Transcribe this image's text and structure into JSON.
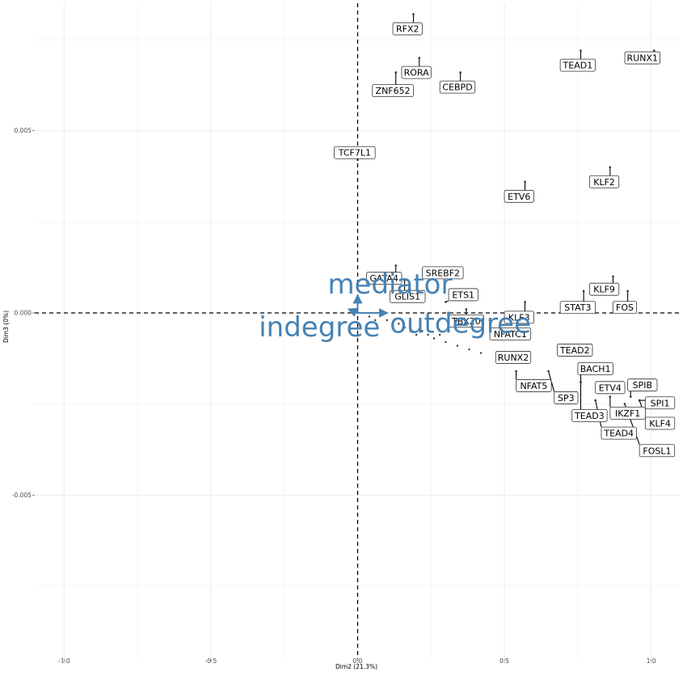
{
  "chart_data": {
    "type": "scatter",
    "title": "",
    "xlabel": "Dim2 (21.3%)",
    "ylabel": "Dim3 (0%)",
    "xlim": [
      -1.1,
      1.1
    ],
    "ylim": [
      -0.0095,
      0.0085
    ],
    "x_ticks": [
      -1.0,
      -0.5,
      0.0,
      0.5,
      1.0
    ],
    "x_tick_labels": [
      "-1.0",
      "-0.5",
      "0.0",
      "0.5",
      "1.0"
    ],
    "y_ticks": [
      -0.005,
      0.0,
      0.005
    ],
    "y_tick_labels": [
      "-0.005",
      "0.000",
      "0.005"
    ],
    "grid": true,
    "reference_lines": {
      "x": 0,
      "y": 0,
      "style": "dashed"
    },
    "points": [
      {
        "label": "RFX2",
        "x": 0.19,
        "y": 0.0082,
        "lx": 0.17,
        "ly": 0.0078
      },
      {
        "label": "RUNX1",
        "x": 1.01,
        "y": 0.0072,
        "lx": 0.97,
        "ly": 0.007
      },
      {
        "label": "TEAD1",
        "x": 0.76,
        "y": 0.0072,
        "lx": 0.75,
        "ly": 0.0068
      },
      {
        "label": "RORA",
        "x": 0.21,
        "y": 0.007,
        "lx": 0.2,
        "ly": 0.0066
      },
      {
        "label": "ZNF652",
        "x": 0.13,
        "y": 0.0066,
        "lx": 0.12,
        "ly": 0.0061
      },
      {
        "label": "CEBPD",
        "x": 0.35,
        "y": 0.0066,
        "lx": 0.34,
        "ly": 0.0062
      },
      {
        "label": "TCF7L1",
        "x": 0.0,
        "y": 0.0042,
        "lx": -0.01,
        "ly": 0.0044
      },
      {
        "label": "KLF2",
        "x": 0.86,
        "y": 0.004,
        "lx": 0.84,
        "ly": 0.0036
      },
      {
        "label": "ETV6",
        "x": 0.57,
        "y": 0.0036,
        "lx": 0.55,
        "ly": 0.0032
      },
      {
        "label": "SREBF2",
        "x": 0.31,
        "y": 0.0012,
        "lx": 0.29,
        "ly": 0.0011
      },
      {
        "label": "GATA4",
        "x": 0.13,
        "y": 0.0013,
        "lx": 0.09,
        "ly": 0.00095
      },
      {
        "label": "GLIS1",
        "x": 0.16,
        "y": 0.0009,
        "lx": 0.17,
        "ly": 0.00045
      },
      {
        "label": "ETS1",
        "x": 0.3,
        "y": 0.0003,
        "lx": 0.36,
        "ly": 0.0005
      },
      {
        "label": "KLF9",
        "x": 0.87,
        "y": 0.001,
        "lx": 0.84,
        "ly": 0.00065
      },
      {
        "label": "STAT3",
        "x": 0.77,
        "y": 0.0006,
        "lx": 0.75,
        "ly": 0.00015
      },
      {
        "label": "FOS",
        "x": 0.92,
        "y": 0.0006,
        "lx": 0.91,
        "ly": 0.00015
      },
      {
        "label": "KLF3",
        "x": 0.57,
        "y": 0.0003,
        "lx": 0.55,
        "ly": -0.00012
      },
      {
        "label": "TBX20",
        "x": 0.37,
        "y": 0.0001,
        "lx": 0.37,
        "ly": -0.00022
      },
      {
        "label": "NFATC1",
        "x": 0.45,
        "y": -0.0002,
        "lx": 0.52,
        "ly": -0.00058
      },
      {
        "label": "TEAD2",
        "x": 0.7,
        "y": -0.001,
        "lx": 0.74,
        "ly": -0.00102
      },
      {
        "label": "RUNX2",
        "x": 0.48,
        "y": -0.0012,
        "lx": 0.53,
        "ly": -0.00122
      },
      {
        "label": "BACH1",
        "x": 0.76,
        "y": -0.0019,
        "lx": 0.81,
        "ly": -0.00153
      },
      {
        "label": "NFAT5",
        "x": 0.54,
        "y": -0.0016,
        "lx": 0.6,
        "ly": -0.002
      },
      {
        "label": "SPIB",
        "x": 0.93,
        "y": -0.0023,
        "lx": 0.97,
        "ly": -0.00198
      },
      {
        "label": "ETV4",
        "x": 0.85,
        "y": -0.0022,
        "lx": 0.86,
        "ly": -0.00205
      },
      {
        "label": "SP3",
        "x": 0.65,
        "y": -0.0016,
        "lx": 0.71,
        "ly": -0.00233
      },
      {
        "label": "SPI1",
        "x": 0.96,
        "y": -0.0024,
        "lx": 1.03,
        "ly": -0.00247
      },
      {
        "label": "IKZF1",
        "x": 0.86,
        "y": -0.0023,
        "lx": 0.92,
        "ly": -0.00275
      },
      {
        "label": "TEAD3",
        "x": 0.76,
        "y": -0.0019,
        "lx": 0.79,
        "ly": -0.00282
      },
      {
        "label": "KLF4",
        "x": 0.96,
        "y": -0.0024,
        "lx": 1.03,
        "ly": -0.00303
      },
      {
        "label": "TEAD4",
        "x": 0.81,
        "y": -0.0024,
        "lx": 0.89,
        "ly": -0.0033
      },
      {
        "label": "FOSL1",
        "x": 0.91,
        "y": -0.0025,
        "lx": 1.02,
        "ly": -0.00378
      }
    ],
    "unlabeled_points": [
      {
        "x": 0.04,
        "y": -0.0001
      },
      {
        "x": 0.06,
        "y": -0.0002
      },
      {
        "x": 0.1,
        "y": -0.0002
      },
      {
        "x": 0.12,
        "y": -0.0004
      },
      {
        "x": 0.14,
        "y": -0.0003
      },
      {
        "x": 0.16,
        "y": -0.0004
      },
      {
        "x": 0.18,
        "y": -0.0005
      },
      {
        "x": 0.2,
        "y": -0.0006
      },
      {
        "x": 0.22,
        "y": -0.0005
      },
      {
        "x": 0.24,
        "y": -0.0006
      },
      {
        "x": 0.26,
        "y": -0.0007
      },
      {
        "x": 0.28,
        "y": -0.0006
      },
      {
        "x": 0.3,
        "y": -0.0008
      },
      {
        "x": 0.34,
        "y": -0.0009
      },
      {
        "x": 0.38,
        "y": -0.001
      },
      {
        "x": 0.42,
        "y": -0.0011
      },
      {
        "x": 0.17,
        "y": 0.0003
      }
    ],
    "variables": [
      {
        "label": "outdegree",
        "x": 0.1,
        "y": 0.0
      },
      {
        "label": "indegree",
        "x": -0.03,
        "y": 0.0001
      },
      {
        "label": "mediator",
        "x": 0.0,
        "y": 0.00048
      }
    ],
    "variable_label_positions": [
      {
        "label": "mediator",
        "x": 0.11,
        "y": 0.00078
      },
      {
        "label": "indegree",
        "x": -0.13,
        "y": -0.0004
      },
      {
        "label": "outdegree",
        "x": 0.35,
        "y": -0.0003
      }
    ],
    "colors": {
      "point": "#333333",
      "variable_arrow": "#4682b4",
      "variable_text": "#4682b4",
      "grid": "#ebebeb",
      "label_border": "#333333"
    }
  }
}
